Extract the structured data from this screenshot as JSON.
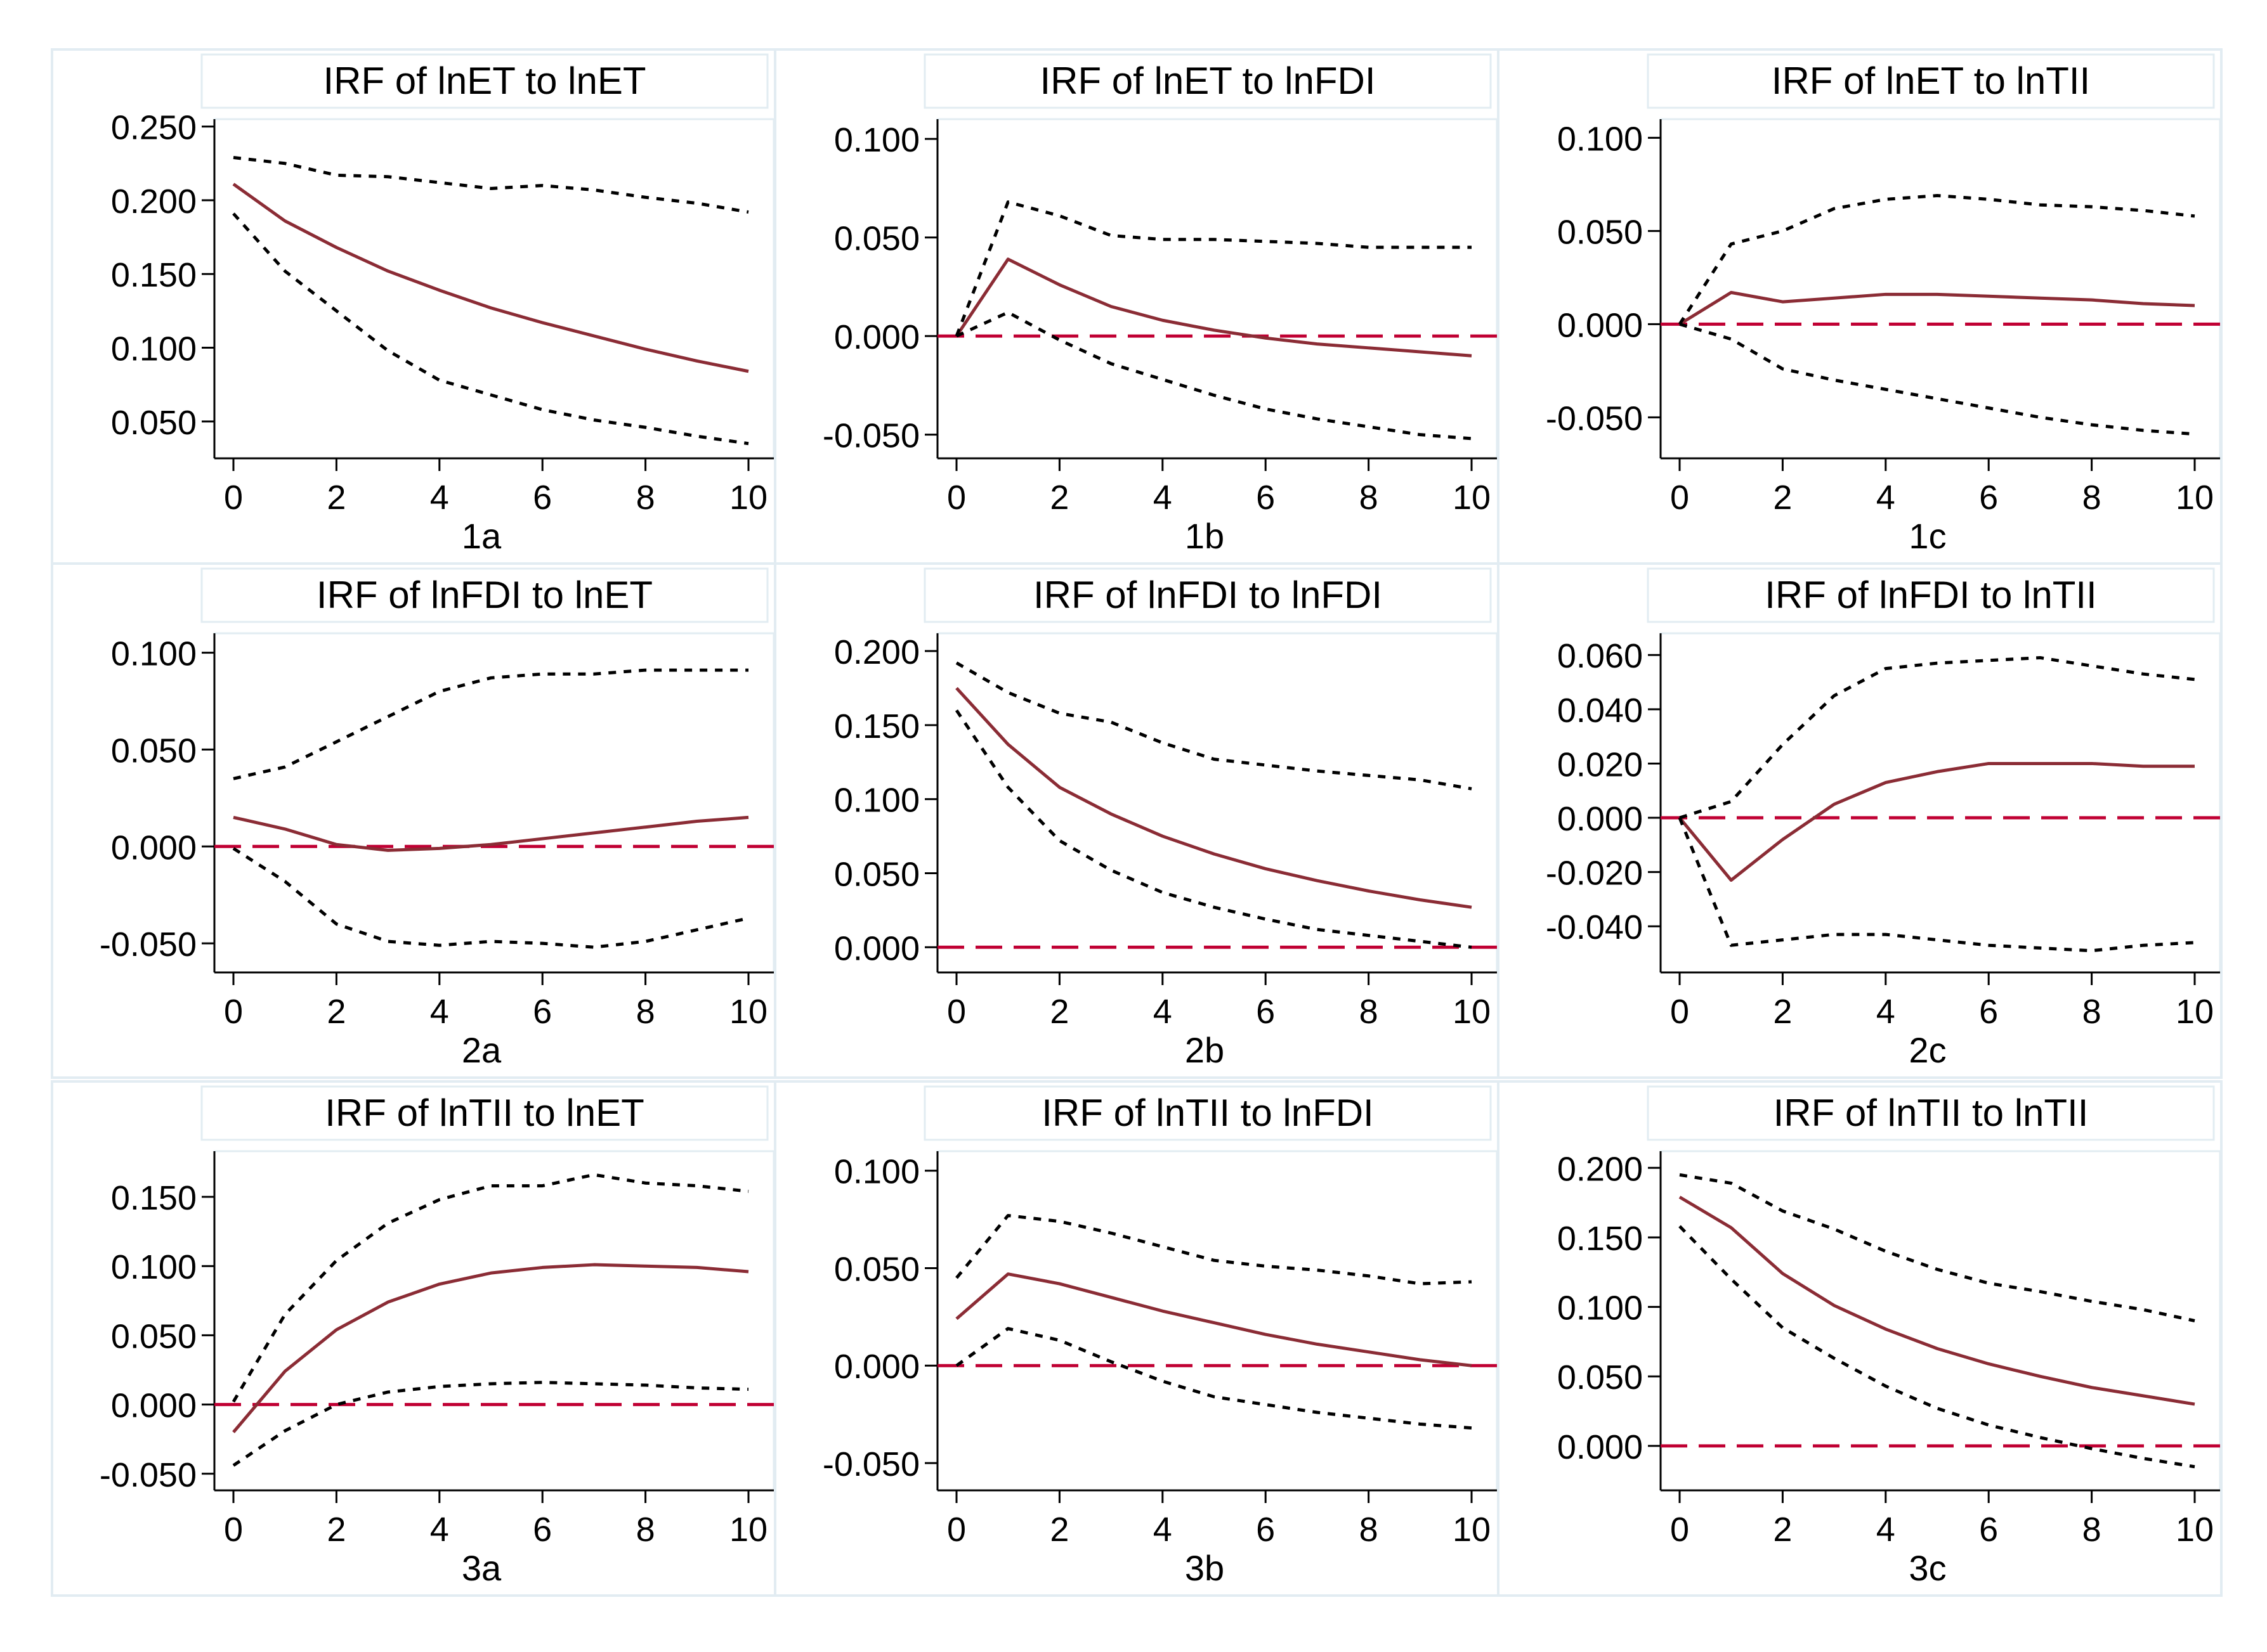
{
  "figure": {
    "style": {
      "irf_color": "#8b2c35",
      "zero_color": "#c00033",
      "band_color": "#000000",
      "panel_border": "#e2ecf2"
    }
  },
  "chart_data": [
    {
      "type": "line",
      "label": "1a",
      "title": "IRF of lnET to lnET",
      "x": [
        0,
        1,
        2,
        3,
        4,
        5,
        6,
        7,
        8,
        9,
        10
      ],
      "ylim": [
        0.025,
        0.255
      ],
      "yticks": [
        0.05,
        0.1,
        0.15,
        0.2,
        0.25
      ],
      "yticklabels": [
        "0.050",
        "0.100",
        "0.150",
        "0.200",
        "0.250"
      ],
      "xticks": [
        0,
        2,
        4,
        6,
        8,
        10
      ],
      "zero_line": false,
      "series": [
        {
          "name": "irf",
          "values": [
            0.211,
            0.186,
            0.168,
            0.152,
            0.139,
            0.127,
            0.117,
            0.108,
            0.099,
            0.091,
            0.084
          ]
        },
        {
          "name": "lower",
          "values": [
            0.191,
            0.152,
            0.125,
            0.098,
            0.078,
            0.068,
            0.058,
            0.051,
            0.046,
            0.04,
            0.035
          ]
        },
        {
          "name": "upper",
          "values": [
            0.229,
            0.225,
            0.217,
            0.216,
            0.212,
            0.208,
            0.21,
            0.207,
            0.202,
            0.198,
            0.192
          ]
        }
      ]
    },
    {
      "type": "line",
      "label": "1b",
      "title": "IRF of lnET to lnFDI",
      "x": [
        0,
        1,
        2,
        3,
        4,
        5,
        6,
        7,
        8,
        9,
        10
      ],
      "ylim": [
        -0.062,
        0.11
      ],
      "yticks": [
        -0.05,
        0,
        0.05,
        0.1
      ],
      "yticklabels": [
        "-0.050",
        "0.000",
        "0.050",
        "0.100"
      ],
      "xticks": [
        0,
        2,
        4,
        6,
        8,
        10
      ],
      "zero_line": true,
      "series": [
        {
          "name": "irf",
          "values": [
            0,
            0.039,
            0.026,
            0.015,
            0.008,
            0.003,
            -0.001,
            -0.004,
            -0.006,
            -0.008,
            -0.01
          ]
        },
        {
          "name": "lower",
          "values": [
            0,
            0.012,
            -0.002,
            -0.014,
            -0.022,
            -0.03,
            -0.037,
            -0.042,
            -0.046,
            -0.05,
            -0.052
          ]
        },
        {
          "name": "upper",
          "values": [
            0,
            0.068,
            0.061,
            0.051,
            0.049,
            0.049,
            0.048,
            0.047,
            0.045,
            0.045,
            0.045
          ]
        }
      ]
    },
    {
      "type": "line",
      "label": "1c",
      "title": "IRF of lnET to lnTII",
      "x": [
        0,
        1,
        2,
        3,
        4,
        5,
        6,
        7,
        8,
        9,
        10
      ],
      "ylim": [
        -0.072,
        0.11
      ],
      "yticks": [
        -0.05,
        0,
        0.05,
        0.1
      ],
      "yticklabels": [
        "-0.050",
        "0.000",
        "0.050",
        "0.100"
      ],
      "xticks": [
        0,
        2,
        4,
        6,
        8,
        10
      ],
      "zero_line": true,
      "series": [
        {
          "name": "irf",
          "values": [
            0,
            0.017,
            0.012,
            0.014,
            0.016,
            0.016,
            0.015,
            0.014,
            0.013,
            0.011,
            0.01
          ]
        },
        {
          "name": "lower",
          "values": [
            0,
            -0.008,
            -0.024,
            -0.03,
            -0.035,
            -0.04,
            -0.045,
            -0.05,
            -0.054,
            -0.057,
            -0.059
          ]
        },
        {
          "name": "upper",
          "values": [
            0,
            0.043,
            0.05,
            0.062,
            0.067,
            0.069,
            0.067,
            0.064,
            0.063,
            0.061,
            0.058
          ]
        }
      ]
    },
    {
      "type": "line",
      "label": "2a",
      "title": "IRF of lnFDI to lnET",
      "x": [
        0,
        1,
        2,
        3,
        4,
        5,
        6,
        7,
        8,
        9,
        10
      ],
      "ylim": [
        -0.065,
        0.11
      ],
      "yticks": [
        -0.05,
        0,
        0.05,
        0.1
      ],
      "yticklabels": [
        "-0.050",
        "0.000",
        "0.050",
        "0.100"
      ],
      "xticks": [
        0,
        2,
        4,
        6,
        8,
        10
      ],
      "zero_line": true,
      "series": [
        {
          "name": "irf",
          "values": [
            0.015,
            0.009,
            0.001,
            -0.002,
            -0.001,
            0.001,
            0.004,
            0.007,
            0.01,
            0.013,
            0.015
          ]
        },
        {
          "name": "lower",
          "values": [
            -0.001,
            -0.018,
            -0.04,
            -0.049,
            -0.051,
            -0.049,
            -0.05,
            -0.052,
            -0.049,
            -0.043,
            -0.037
          ]
        },
        {
          "name": "upper",
          "values": [
            0.035,
            0.041,
            0.054,
            0.067,
            0.08,
            0.087,
            0.089,
            0.089,
            0.091,
            0.091,
            0.091
          ]
        }
      ]
    },
    {
      "type": "line",
      "label": "2b",
      "title": "IRF of lnFDI to lnFDI",
      "x": [
        0,
        1,
        2,
        3,
        4,
        5,
        6,
        7,
        8,
        9,
        10
      ],
      "ylim": [
        -0.017,
        0.212
      ],
      "yticks": [
        0,
        0.05,
        0.1,
        0.15,
        0.2
      ],
      "yticklabels": [
        "0.000",
        "0.050",
        "0.100",
        "0.150",
        "0.200"
      ],
      "xticks": [
        0,
        2,
        4,
        6,
        8,
        10
      ],
      "zero_line": true,
      "series": [
        {
          "name": "irf",
          "values": [
            0.175,
            0.137,
            0.108,
            0.09,
            0.075,
            0.063,
            0.053,
            0.045,
            0.038,
            0.032,
            0.027
          ]
        },
        {
          "name": "lower",
          "values": [
            0.16,
            0.108,
            0.072,
            0.052,
            0.037,
            0.027,
            0.019,
            0.012,
            0.008,
            0.004,
            0.0
          ]
        },
        {
          "name": "upper",
          "values": [
            0.192,
            0.172,
            0.158,
            0.152,
            0.138,
            0.127,
            0.123,
            0.119,
            0.116,
            0.113,
            0.107
          ]
        }
      ]
    },
    {
      "type": "line",
      "label": "2c",
      "title": "IRF of lnFDI to lnTII",
      "x": [
        0,
        1,
        2,
        3,
        4,
        5,
        6,
        7,
        8,
        9,
        10
      ],
      "ylim": [
        -0.057,
        0.068
      ],
      "yticks": [
        -0.04,
        -0.02,
        0,
        0.02,
        0.04,
        0.06
      ],
      "yticklabels": [
        "-0.040",
        "-0.020",
        "0.000",
        "0.020",
        "0.040",
        "0.060"
      ],
      "xticks": [
        0,
        2,
        4,
        6,
        8,
        10
      ],
      "zero_line": true,
      "series": [
        {
          "name": "irf",
          "values": [
            0,
            -0.023,
            -0.008,
            0.005,
            0.013,
            0.017,
            0.02,
            0.02,
            0.02,
            0.019,
            0.019
          ]
        },
        {
          "name": "lower",
          "values": [
            0,
            -0.047,
            -0.045,
            -0.043,
            -0.043,
            -0.045,
            -0.047,
            -0.048,
            -0.049,
            -0.047,
            -0.046
          ]
        },
        {
          "name": "upper",
          "values": [
            0,
            0.006,
            0.027,
            0.045,
            0.055,
            0.057,
            0.058,
            0.059,
            0.056,
            0.053,
            0.051
          ]
        }
      ]
    },
    {
      "type": "line",
      "label": "3a",
      "title": "IRF of lnTII to lnET",
      "x": [
        0,
        1,
        2,
        3,
        4,
        5,
        6,
        7,
        8,
        9,
        10
      ],
      "ylim": [
        -0.062,
        0.183
      ],
      "yticks": [
        -0.05,
        0,
        0.05,
        0.1,
        0.15
      ],
      "yticklabels": [
        "-0.050",
        "0.000",
        "0.050",
        "0.100",
        "0.150"
      ],
      "xticks": [
        0,
        2,
        4,
        6,
        8,
        10
      ],
      "zero_line": true,
      "series": [
        {
          "name": "irf",
          "values": [
            -0.02,
            0.024,
            0.054,
            0.074,
            0.087,
            0.095,
            0.099,
            0.101,
            0.1,
            0.099,
            0.096
          ]
        },
        {
          "name": "lower",
          "values": [
            -0.044,
            -0.019,
            0.0,
            0.009,
            0.013,
            0.015,
            0.016,
            0.015,
            0.014,
            0.012,
            0.011
          ]
        },
        {
          "name": "upper",
          "values": [
            0.002,
            0.065,
            0.104,
            0.131,
            0.148,
            0.158,
            0.158,
            0.166,
            0.16,
            0.158,
            0.154
          ]
        }
      ]
    },
    {
      "type": "line",
      "label": "3b",
      "title": "IRF of lnTII to lnFDI",
      "x": [
        0,
        1,
        2,
        3,
        4,
        5,
        6,
        7,
        8,
        9,
        10
      ],
      "ylim": [
        -0.064,
        0.11
      ],
      "yticks": [
        -0.05,
        0,
        0.05,
        0.1
      ],
      "yticklabels": [
        "-0.050",
        "0.000",
        "0.050",
        "0.100"
      ],
      "xticks": [
        0,
        2,
        4,
        6,
        8,
        10
      ],
      "zero_line": true,
      "series": [
        {
          "name": "irf",
          "values": [
            0.024,
            0.047,
            0.042,
            0.035,
            0.028,
            0.022,
            0.016,
            0.011,
            0.007,
            0.003,
            0.0
          ]
        },
        {
          "name": "lower",
          "values": [
            0.0,
            0.019,
            0.013,
            0.002,
            -0.008,
            -0.016,
            -0.02,
            -0.024,
            -0.027,
            -0.03,
            -0.032
          ]
        },
        {
          "name": "upper",
          "values": [
            0.045,
            0.077,
            0.074,
            0.068,
            0.061,
            0.054,
            0.051,
            0.049,
            0.046,
            0.042,
            0.043
          ]
        }
      ]
    },
    {
      "type": "line",
      "label": "3c",
      "title": "IRF of lnTII to lnTII",
      "x": [
        0,
        1,
        2,
        3,
        4,
        5,
        6,
        7,
        8,
        9,
        10
      ],
      "ylim": [
        -0.032,
        0.212
      ],
      "yticks": [
        0,
        0.05,
        0.1,
        0.15,
        0.2
      ],
      "yticklabels": [
        "0.000",
        "0.050",
        "0.100",
        "0.150",
        "0.200"
      ],
      "xticks": [
        0,
        2,
        4,
        6,
        8,
        10
      ],
      "zero_line": true,
      "series": [
        {
          "name": "irf",
          "values": [
            0.179,
            0.157,
            0.124,
            0.101,
            0.084,
            0.07,
            0.059,
            0.05,
            0.042,
            0.036,
            0.03
          ]
        },
        {
          "name": "lower",
          "values": [
            0.158,
            0.12,
            0.085,
            0.063,
            0.043,
            0.027,
            0.015,
            0.006,
            -0.002,
            -0.009,
            -0.015
          ]
        },
        {
          "name": "upper",
          "values": [
            0.195,
            0.189,
            0.169,
            0.156,
            0.14,
            0.127,
            0.117,
            0.111,
            0.104,
            0.098,
            0.09
          ]
        }
      ]
    }
  ]
}
